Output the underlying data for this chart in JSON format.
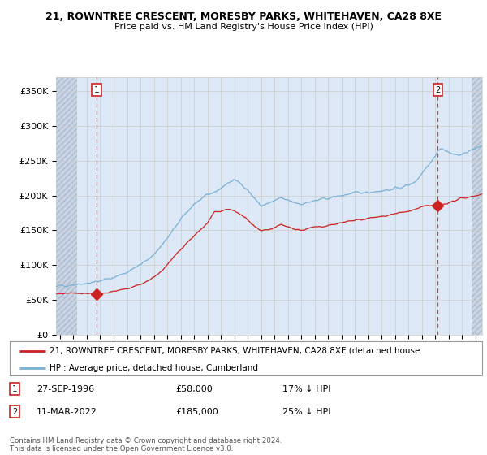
{
  "title_line1": "21, ROWNTREE CRESCENT, MORESBY PARKS, WHITEHAVEN, CA28 8XE",
  "title_line2": "Price paid vs. HM Land Registry's House Price Index (HPI)",
  "ylabel_ticks": [
    "£0",
    "£50K",
    "£100K",
    "£150K",
    "£200K",
    "£250K",
    "£300K",
    "£350K"
  ],
  "ytick_values": [
    0,
    50000,
    100000,
    150000,
    200000,
    250000,
    300000,
    350000
  ],
  "ylim": [
    0,
    370000
  ],
  "xlim_start": 1993.7,
  "xlim_end": 2025.5,
  "hpi_color": "#7ab0d4",
  "price_color": "#cc2222",
  "point1_x": 1996.74,
  "point1_y": 58000,
  "point2_x": 2022.19,
  "point2_y": 185000,
  "hatch_end": 1995.3,
  "hatch_start_right": 2024.7,
  "legend_line1": "21, ROWNTREE CRESCENT, MORESBY PARKS, WHITEHAVEN, CA28 8XE (detached house",
  "legend_line2": "HPI: Average price, detached house, Cumberland",
  "annotation1_date": "27-SEP-1996",
  "annotation1_price": "£58,000",
  "annotation1_hpi": "17% ↓ HPI",
  "annotation2_date": "11-MAR-2022",
  "annotation2_price": "£185,000",
  "annotation2_hpi": "25% ↓ HPI",
  "footer": "Contains HM Land Registry data © Crown copyright and database right 2024.\nThis data is licensed under the Open Government Licence v3.0.",
  "grid_color": "#cccccc",
  "bg_color": "#dce8f5",
  "hatch_bg": "#c8d4e8"
}
